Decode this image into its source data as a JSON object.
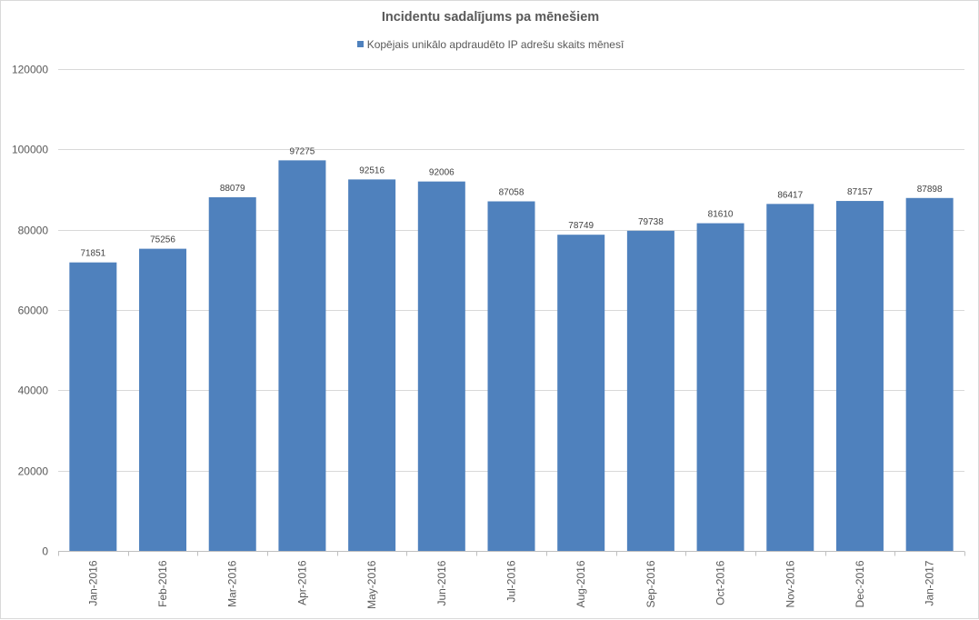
{
  "chart_data": {
    "type": "bar",
    "title": "Incidentu sadalījums pa mēnešiem",
    "xlabel": "",
    "ylabel": "",
    "categories": [
      "Jan-2016",
      "Feb-2016",
      "Mar-2016",
      "Apr-2016",
      "May-2016",
      "Jun-2016",
      "Jul-2016",
      "Aug-2016",
      "Sep-2016",
      "Oct-2016",
      "Nov-2016",
      "Dec-2016",
      "Jan-2017"
    ],
    "series": [
      {
        "name": "Kopējais unikālo apdraudēto IP adrešu skaits mēnesī",
        "values": [
          71851,
          75256,
          88079,
          97275,
          92516,
          92006,
          87058,
          78749,
          79738,
          81610,
          86417,
          87157,
          87898
        ],
        "color": "#4f81bd"
      }
    ],
    "ylim": [
      0,
      120000
    ],
    "yticks": [
      0,
      20000,
      40000,
      60000,
      80000,
      100000,
      120000
    ],
    "grid": true,
    "legend_position": "top",
    "data_labels": true
  }
}
